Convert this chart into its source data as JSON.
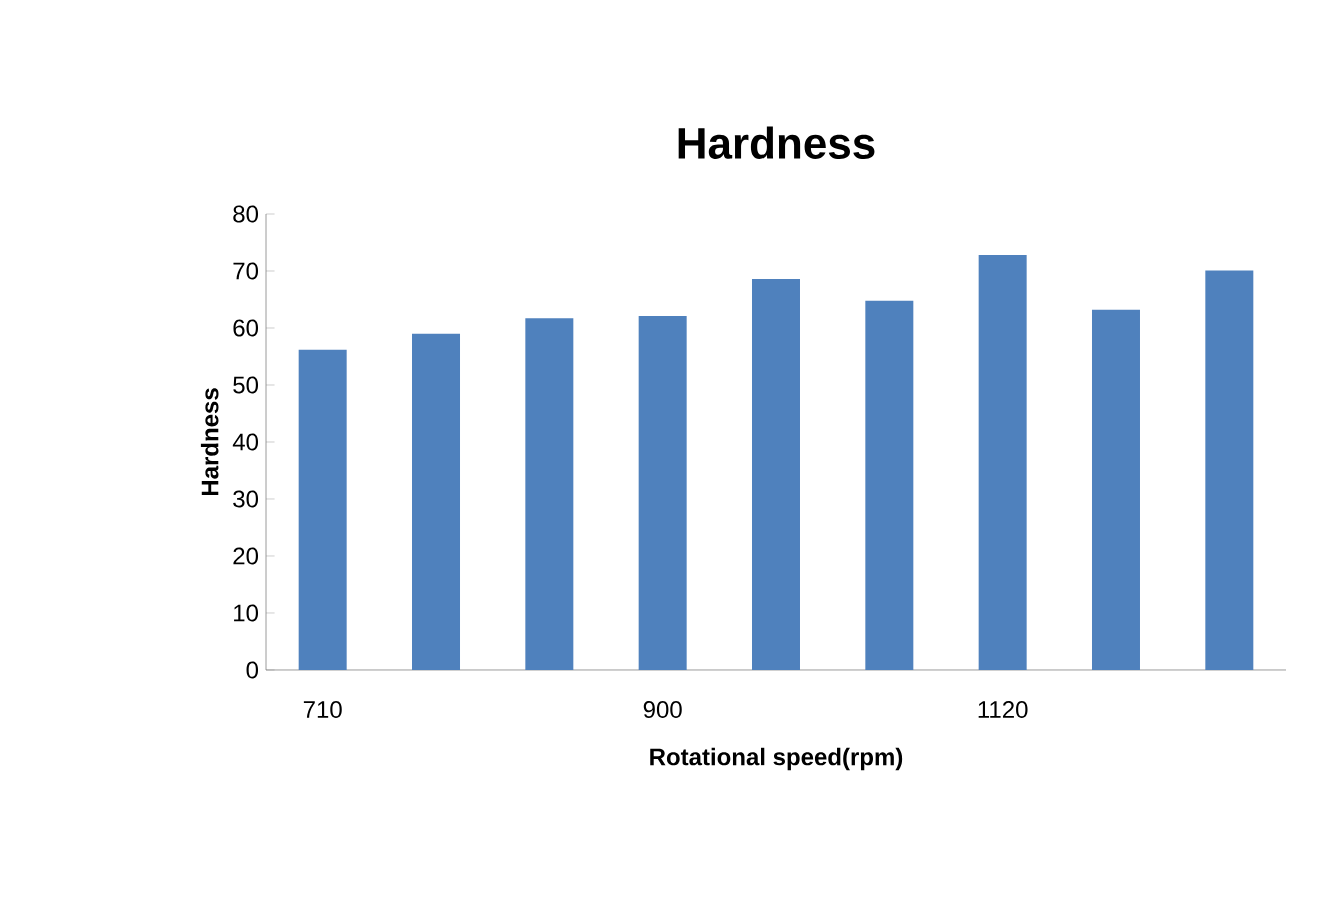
{
  "chart_data": {
    "type": "bar",
    "title": "Hardness",
    "xlabel": "Rotational speed(rpm)",
    "ylabel": "Hardness",
    "categories": [
      "710",
      null,
      null,
      "900",
      null,
      null,
      "1120",
      null,
      null
    ],
    "values": [
      56.2,
      59.0,
      61.7,
      62.1,
      68.6,
      64.8,
      72.8,
      63.2,
      70.1
    ],
    "color": "#4f81bd",
    "ylim": [
      0,
      80
    ],
    "yticks": [
      0,
      10,
      20,
      30,
      40,
      50,
      60,
      70,
      80
    ],
    "grid": false
  }
}
